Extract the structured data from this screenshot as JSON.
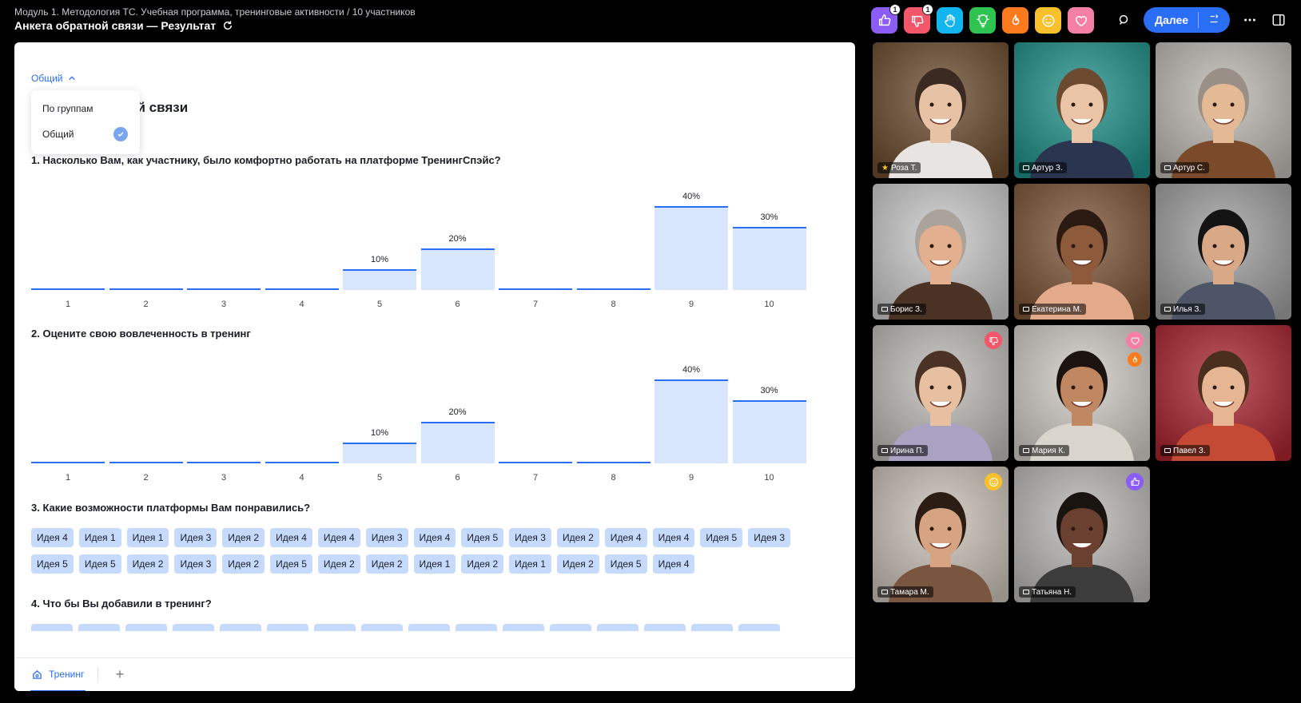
{
  "header": {
    "breadcrumb": "Модуль 1. Методология ТС. Учебная программа, тренинговые активности / 10 участников",
    "title": "Анкета обратной связи — Результат",
    "reactions": [
      {
        "name": "like",
        "color": "#8b5cf6",
        "badge": "1"
      },
      {
        "name": "dislike",
        "color": "#f4566a",
        "badge": "1"
      },
      {
        "name": "hand",
        "color": "#12b5ee",
        "badge": ""
      },
      {
        "name": "idea",
        "color": "#2fc451",
        "badge": ""
      },
      {
        "name": "fire",
        "color": "#fb7a1e",
        "badge": ""
      },
      {
        "name": "smile",
        "color": "#f8c12b",
        "badge": ""
      },
      {
        "name": "heart",
        "color": "#f67fa6",
        "badge": ""
      }
    ],
    "next_label": "Далее"
  },
  "panel": {
    "filter_label": "Общий",
    "survey_title": "Анкета обратной связи",
    "dropdown": {
      "options": [
        "По группам",
        "Общий"
      ],
      "selected": "Общий"
    },
    "questions": [
      {
        "text": "1. Насколько Вам, как участнику, было комфортно работать на платформе ТренингСпэйс?"
      },
      {
        "text": "2. Оцените свою вовлеченность в тренинг"
      },
      {
        "text": "3. Какие возможности платформы Вам понравились?"
      },
      {
        "text": "4. Что бы Вы добавили в тренинг?"
      }
    ],
    "chips_q3_row1": [
      "Идея 4",
      "Идея 1",
      "Идея 1",
      "Идея 3",
      "Идея 2",
      "Идея 4",
      "Идея 4",
      "Идея 3",
      "Идея 4",
      "Идея 5",
      "Идея 3",
      "Идея 2",
      "Идея 4",
      "Идея 4",
      "Идея 5",
      "Идея 3"
    ],
    "chips_q3_row2": [
      "Идея 5",
      "Идея 5",
      "Идея 2",
      "Идея 3",
      "Идея 2",
      "Идея 5",
      "Идея 2",
      "Идея 2",
      "Идея 1",
      "Идея 2",
      "Идея 1",
      "Идея 2",
      "Идея 5",
      "Идея 4"
    ],
    "tab_label": "Тренинг"
  },
  "chart_data": [
    {
      "type": "bar",
      "categories": [
        "1",
        "2",
        "3",
        "4",
        "5",
        "6",
        "7",
        "8",
        "9",
        "10"
      ],
      "values": [
        0,
        0,
        0,
        0,
        10,
        20,
        0,
        0,
        40,
        30
      ],
      "labels": [
        "",
        "",
        "",
        "",
        "10%",
        "20%",
        "",
        "",
        "40%",
        "30%"
      ],
      "ylim": [
        0,
        40
      ]
    },
    {
      "type": "bar",
      "categories": [
        "1",
        "2",
        "3",
        "4",
        "5",
        "6",
        "7",
        "8",
        "9",
        "10"
      ],
      "values": [
        0,
        0,
        0,
        0,
        10,
        20,
        0,
        0,
        40,
        30
      ],
      "labels": [
        "",
        "",
        "",
        "",
        "10%",
        "20%",
        "",
        "",
        "40%",
        "30%"
      ],
      "ylim": [
        0,
        40
      ]
    }
  ],
  "participants": [
    {
      "name": "Роза Т.",
      "host": true,
      "reaction": "",
      "bg": "#6b4a2e",
      "skin": "#e7c2a4",
      "hair": "#3a2a22",
      "shirt": "#e8e4e2"
    },
    {
      "name": "Артур З.",
      "host": false,
      "reaction": "",
      "bg": "#1f8f88",
      "skin": "#e9c4a6",
      "hair": "#6b4a30",
      "shirt": "#2a3550"
    },
    {
      "name": "Артур С.",
      "host": false,
      "reaction": "",
      "bg": "#bdb8b2",
      "skin": "#e3b996",
      "hair": "#9a8f86",
      "shirt": "#7a4a2a"
    },
    {
      "name": "Борис З.",
      "host": false,
      "reaction": "",
      "bg": "#c9c9c9",
      "skin": "#e2b08e",
      "hair": "#a9a39b",
      "shirt": "#4a3324"
    },
    {
      "name": "Екатерина М.",
      "host": false,
      "reaction": "",
      "bg": "#7a5236",
      "skin": "#8e5a3c",
      "hair": "#2b1a12",
      "shirt": "#e2a98a"
    },
    {
      "name": "Илья З.",
      "host": false,
      "reaction": "",
      "bg": "#9e9e9e",
      "skin": "#d9a987",
      "hair": "#141414",
      "shirt": "#4d5566"
    },
    {
      "name": "Ирина П.",
      "host": false,
      "reaction": "dislike",
      "bg": "#bdbab6",
      "skin": "#e7bfa1",
      "hair": "#4a3226",
      "shirt": "#a9a2c2"
    },
    {
      "name": "Мария К.",
      "host": false,
      "reaction": "heart",
      "bg": "#cfcac4",
      "skin": "#c08763",
      "hair": "#1b1310",
      "shirt": "#dad5cc"
    },
    {
      "name": "Павел З.",
      "host": false,
      "reaction": "",
      "bg": "#a8232e",
      "skin": "#e6b594",
      "hair": "#4a2f1e",
      "shirt": "#c54a36"
    },
    {
      "name": "Тамара М.",
      "host": false,
      "reaction": "smile",
      "bg": "#c9c1b8",
      "skin": "#d7a483",
      "hair": "#2b1c14",
      "shirt": "#7a5540"
    },
    {
      "name": "Татьяна Н.",
      "host": false,
      "reaction": "like",
      "bg": "#b9b7b4",
      "skin": "#6a4130",
      "hair": "#1a1411",
      "shirt": "#3c3c3c"
    }
  ]
}
